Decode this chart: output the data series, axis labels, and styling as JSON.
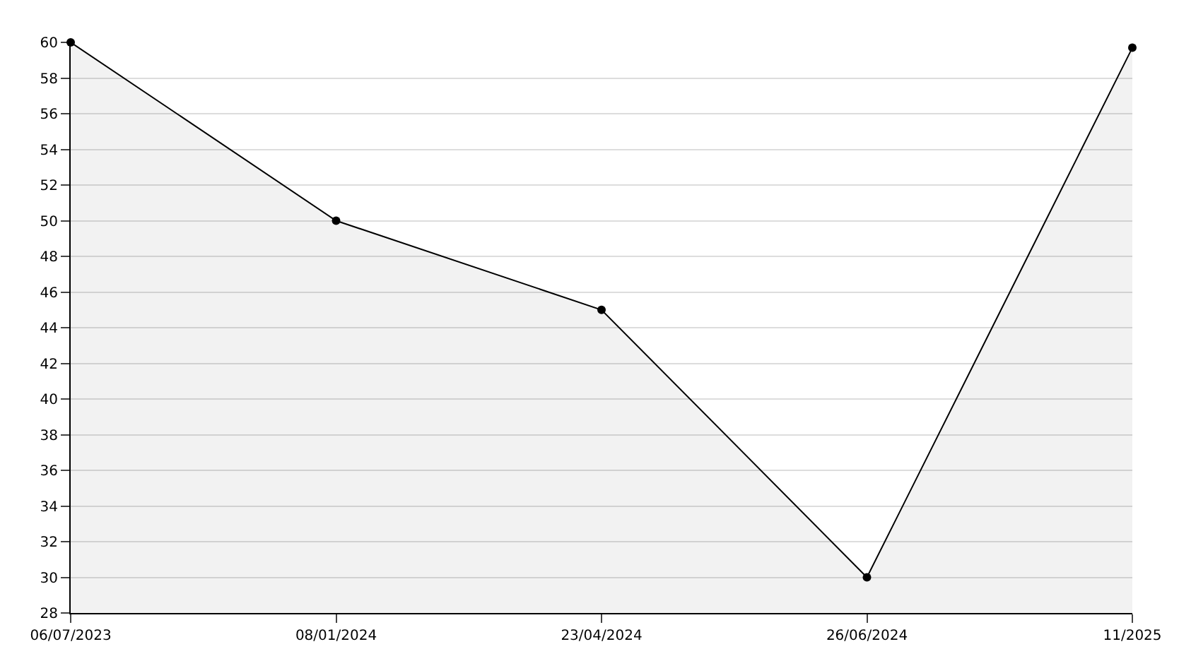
{
  "chart_data": {
    "type": "area",
    "categories": [
      "06/07/2023",
      "08/01/2024",
      "23/04/2024",
      "26/06/2024",
      "11/2025"
    ],
    "series": [
      {
        "color": "#000000",
        "values": [
          60,
          50,
          45,
          30,
          59.7
        ]
      }
    ],
    "ylim": [
      28,
      60
    ],
    "yticks": [
      28,
      30,
      32,
      34,
      36,
      38,
      40,
      42,
      44,
      46,
      48,
      50,
      52,
      54,
      56,
      58,
      60
    ],
    "grid": "y",
    "marker": "circle",
    "line_style": "solid",
    "legend": false
  }
}
